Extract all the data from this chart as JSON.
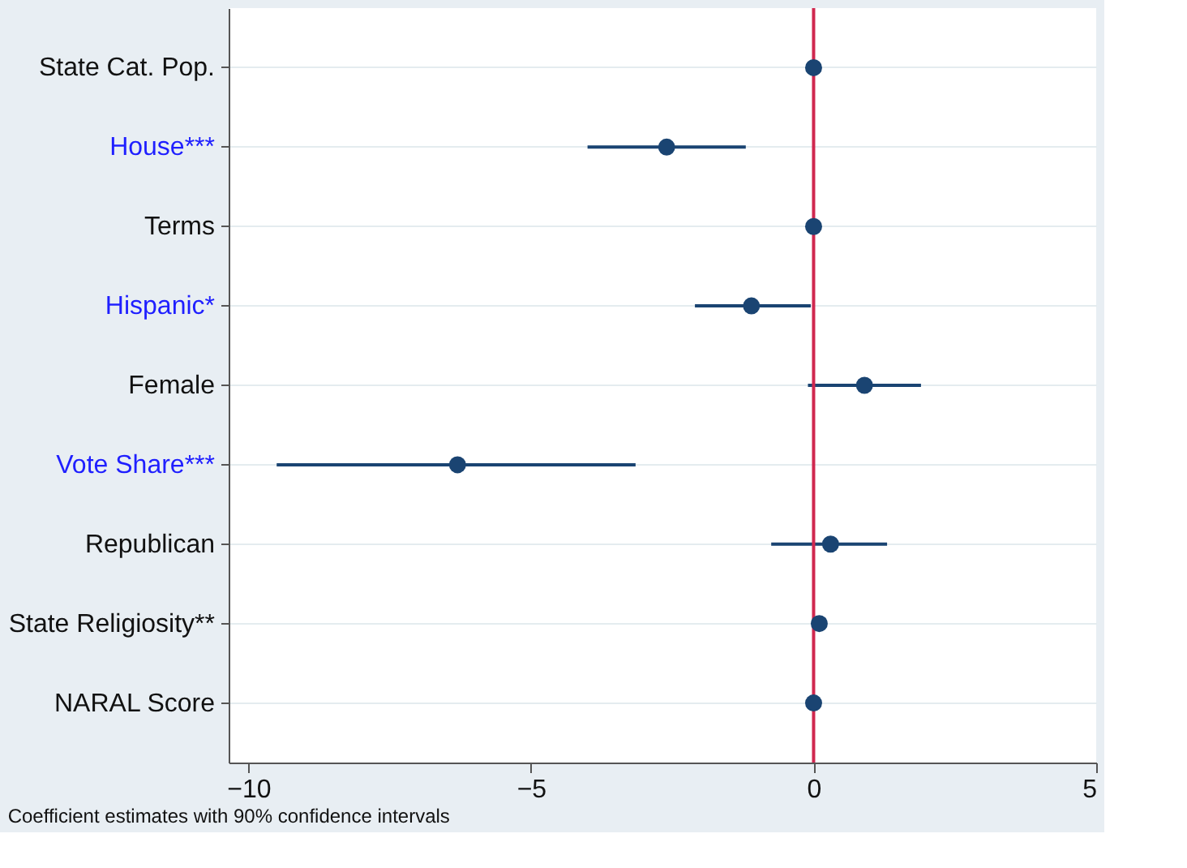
{
  "chart_data": {
    "type": "scatter",
    "orientation": "horizontal",
    "categories": [
      "State Cat. Pop.",
      "House***",
      "Terms",
      "Hispanic*",
      "Female",
      "Vote Share***",
      "Republican",
      "State Religiosity**",
      "NARAL Score"
    ],
    "series": [
      {
        "color": "#1a4472",
        "values": [
          0,
          -2.6,
          0,
          -1.1,
          0.9,
          -6.3,
          0.3,
          0.1,
          0
        ],
        "errors": [
          null,
          [
            -4.0,
            -1.2
          ],
          null,
          [
            -2.1,
            -0.05
          ],
          [
            -0.1,
            1.9
          ],
          [
            -9.5,
            -3.15
          ],
          [
            -0.75,
            1.3
          ],
          null,
          null
        ]
      }
    ],
    "xlim": [
      -10.35,
      5
    ],
    "xticks": [
      -10,
      -5,
      0,
      5
    ],
    "ref_lines": [
      {
        "axis": "x",
        "value": 0,
        "color": "#d0284f"
      }
    ],
    "grid": "y",
    "marker": "circle",
    "annotations": [
      "Coefficient estimates with 90% confidence intervals"
    ]
  }
}
